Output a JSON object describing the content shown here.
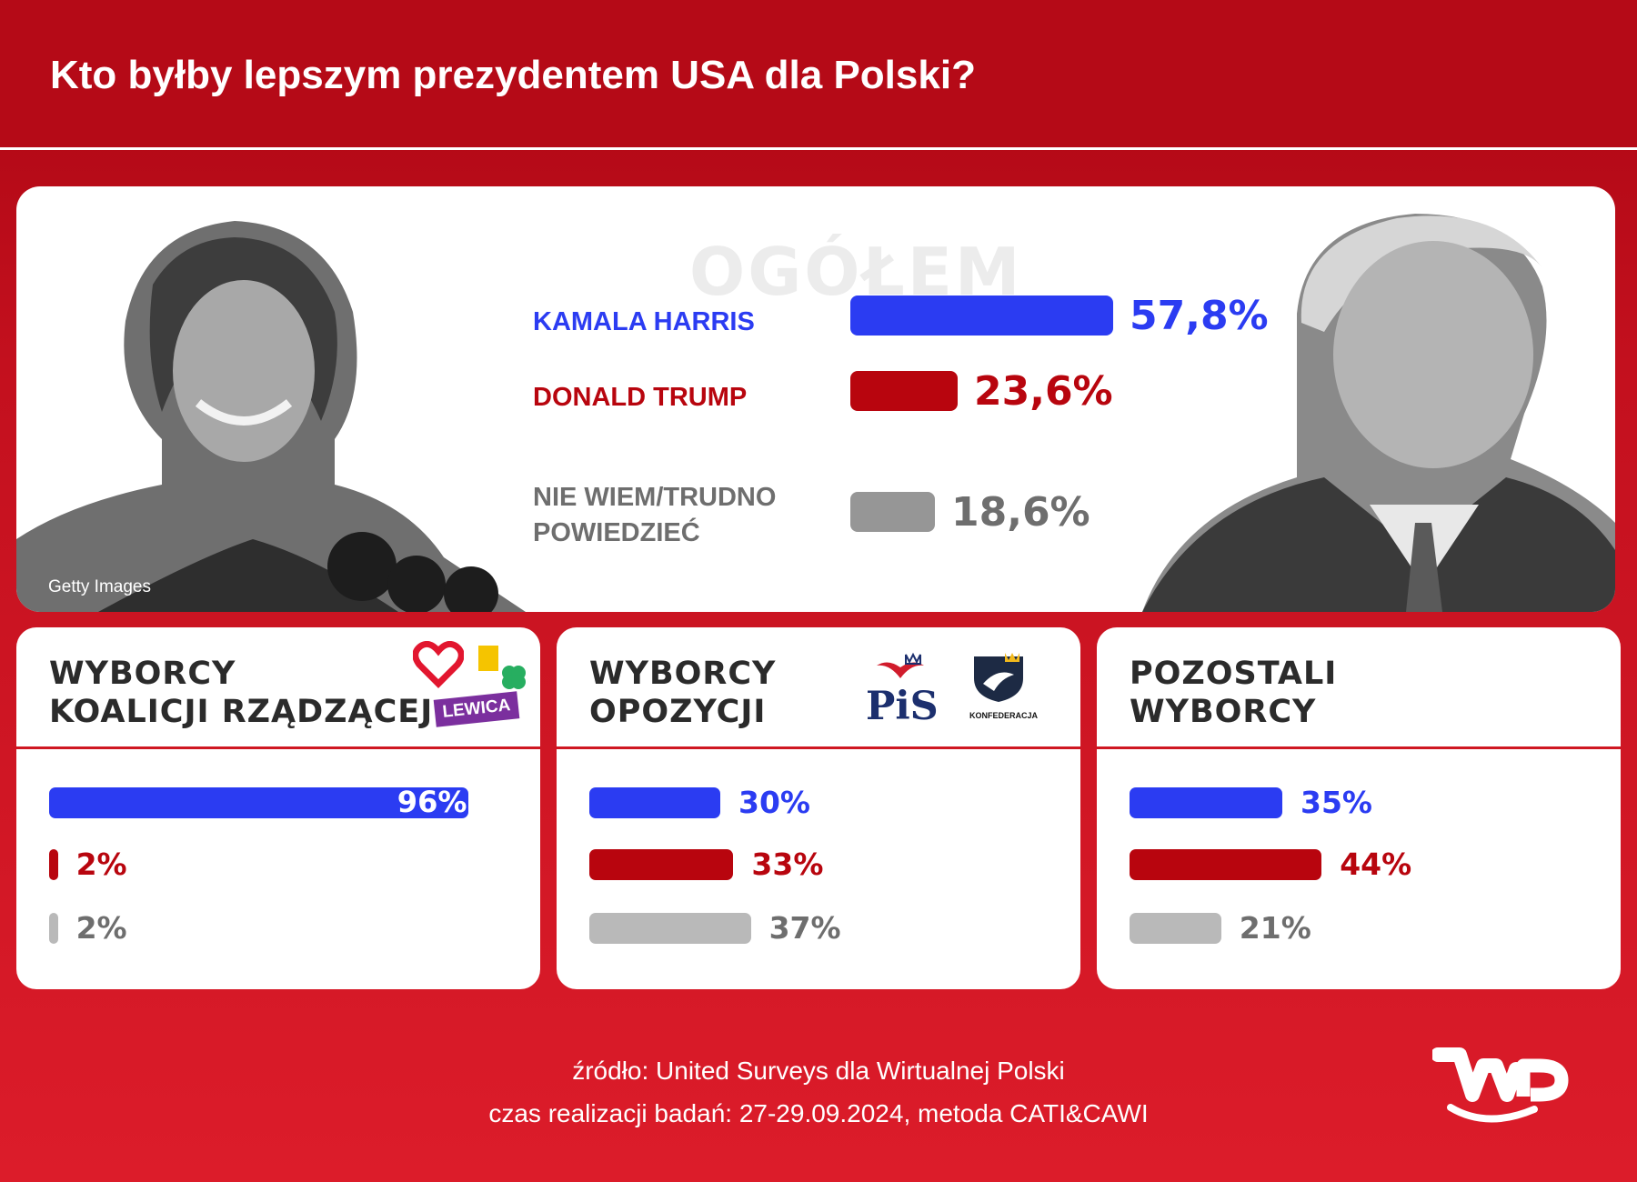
{
  "title": "Kto byłby lepszym prezydentem USA dla Polski?",
  "colors": {
    "harris": "#2b3cf2",
    "trump": "#b8050e",
    "undecided": "#969696",
    "background": "#c3101e"
  },
  "main": {
    "heading": "OGÓŁEM",
    "photo_credit": "Getty Images",
    "rows": [
      {
        "label": "KAMALA HARRIS",
        "value_text": "57,8%"
      },
      {
        "label": "DONALD TRUMP",
        "value_text": "23,6%"
      },
      {
        "label_line1": "NIE WIEM/TRUDNO",
        "label_line2": "POWIEDZIEĆ",
        "value_text": "18,6%"
      }
    ]
  },
  "groups": [
    {
      "title_line1": "WYBORCY",
      "title_line2": "KOALICJI RZĄDZĄCEJ",
      "logos": {
        "lewica": "LEWICA"
      },
      "values_text": [
        "96%",
        "2%",
        "2%"
      ]
    },
    {
      "title_line1": "WYBORCY",
      "title_line2": "OPOZYCJI",
      "logos": {
        "pis": "PiS",
        "konfederacja": "KONFEDERACJA"
      },
      "values_text": [
        "30%",
        "33%",
        "37%"
      ]
    },
    {
      "title_line1": "POZOSTALI",
      "title_line2": "WYBORCY",
      "values_text": [
        "35%",
        "44%",
        "21%"
      ]
    }
  ],
  "source": {
    "line1": "źródło: United Surveys dla Wirtualnej Polski",
    "line2": "czas realizacji badań: 27-29.09.2024, metoda CATI&CAWI"
  },
  "chart_data": [
    {
      "type": "bar",
      "title": "OGÓŁEM",
      "categories": [
        "KAMALA HARRIS",
        "DONALD TRUMP",
        "NIE WIEM/TRUDNO POWIEDZIEĆ"
      ],
      "values": [
        57.8,
        23.6,
        18.6
      ]
    },
    {
      "type": "bar",
      "title": "WYBORCY KOALICJI RZĄDZĄCEJ",
      "categories": [
        "KAMALA HARRIS",
        "DONALD TRUMP",
        "NIE WIEM/TRUDNO POWIEDZIEĆ"
      ],
      "values": [
        96,
        2,
        2
      ]
    },
    {
      "type": "bar",
      "title": "WYBORCY OPOZYCJI",
      "categories": [
        "KAMALA HARRIS",
        "DONALD TRUMP",
        "NIE WIEM/TRUDNO POWIEDZIEĆ"
      ],
      "values": [
        30,
        33,
        37
      ]
    },
    {
      "type": "bar",
      "title": "POZOSTALI WYBORCY",
      "categories": [
        "KAMALA HARRIS",
        "DONALD TRUMP",
        "NIE WIEM/TRUDNO POWIEDZIEĆ"
      ],
      "values": [
        35,
        44,
        21
      ]
    }
  ]
}
